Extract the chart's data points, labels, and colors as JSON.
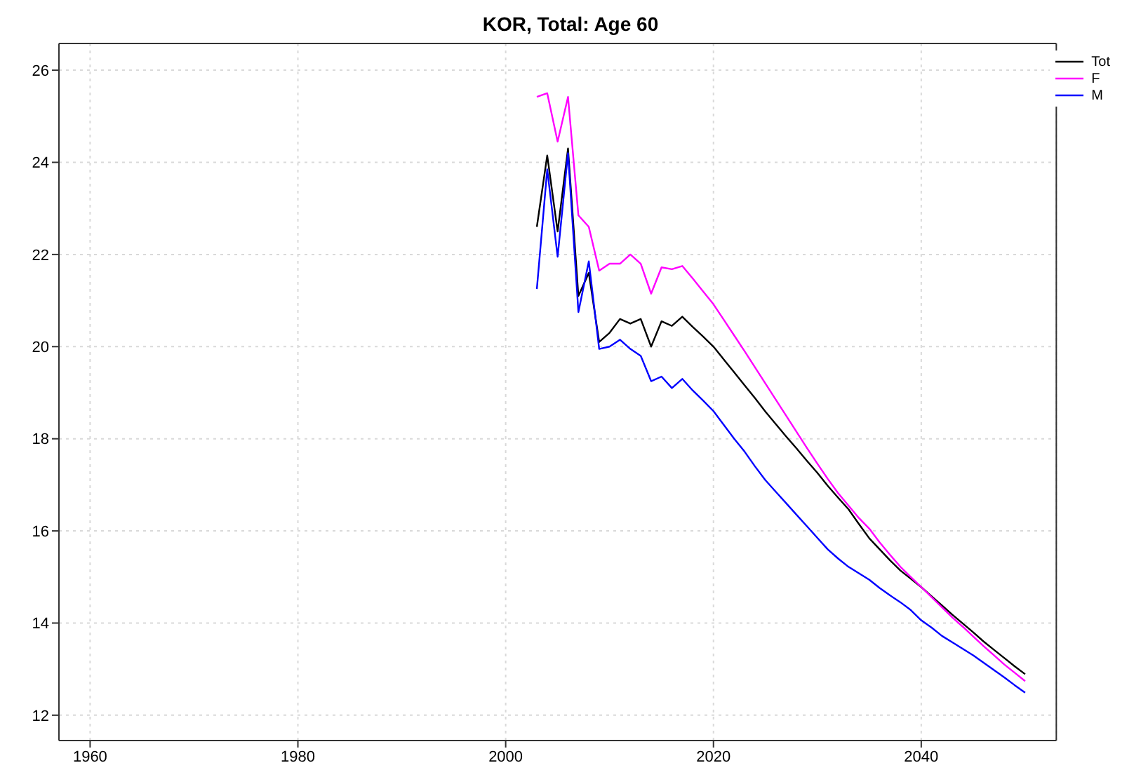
{
  "chart_data": {
    "type": "line",
    "title": "KOR, Total: Age 60",
    "x": [
      2003,
      2004,
      2005,
      2006,
      2007,
      2008,
      2009,
      2010,
      2011,
      2012,
      2013,
      2014,
      2015,
      2016,
      2017,
      2018,
      2019,
      2020,
      2021,
      2022,
      2023,
      2024,
      2025,
      2026,
      2027,
      2028,
      2029,
      2030,
      2031,
      2032,
      2033,
      2034,
      2035,
      2036,
      2037,
      2038,
      2039,
      2040,
      2041,
      2042,
      2043,
      2044,
      2045,
      2046,
      2047,
      2048,
      2049,
      2050
    ],
    "series": [
      {
        "name": "Tot",
        "color": "#000000",
        "values": [
          22.6,
          24.15,
          22.5,
          24.3,
          21.1,
          21.6,
          20.1,
          20.3,
          20.6,
          20.5,
          20.6,
          20.0,
          20.55,
          20.45,
          20.65,
          20.43,
          20.22,
          20.0,
          19.72,
          19.44,
          19.16,
          18.88,
          18.59,
          18.32,
          18.05,
          17.79,
          17.52,
          17.26,
          16.98,
          16.72,
          16.47,
          16.15,
          15.84,
          15.6,
          15.36,
          15.14,
          14.96,
          14.78,
          14.58,
          14.38,
          14.18,
          13.99,
          13.8,
          13.6,
          13.42,
          13.24,
          13.06,
          12.89
        ]
      },
      {
        "name": "F",
        "color": "#ff00ff",
        "values": [
          25.42,
          25.5,
          24.45,
          25.42,
          22.85,
          22.6,
          21.65,
          21.8,
          21.8,
          22.0,
          21.8,
          21.15,
          21.72,
          21.68,
          21.75,
          21.48,
          21.2,
          20.92,
          20.58,
          20.24,
          19.9,
          19.55,
          19.2,
          18.85,
          18.5,
          18.15,
          17.8,
          17.46,
          17.13,
          16.82,
          16.55,
          16.28,
          16.05,
          15.75,
          15.48,
          15.22,
          15.0,
          14.78,
          14.56,
          14.34,
          14.12,
          13.92,
          13.71,
          13.5,
          13.3,
          13.1,
          12.92,
          12.74
        ]
      },
      {
        "name": "M",
        "color": "#0000ff",
        "values": [
          21.25,
          23.85,
          21.95,
          24.2,
          20.75,
          21.85,
          19.95,
          20.0,
          20.15,
          19.95,
          19.8,
          19.25,
          19.35,
          19.1,
          19.3,
          19.05,
          18.83,
          18.6,
          18.3,
          18.0,
          17.72,
          17.4,
          17.1,
          16.85,
          16.6,
          16.35,
          16.1,
          15.85,
          15.6,
          15.4,
          15.22,
          15.08,
          14.94,
          14.76,
          14.6,
          14.45,
          14.28,
          14.06,
          13.9,
          13.72,
          13.58,
          13.44,
          13.3,
          13.14,
          12.98,
          12.82,
          12.65,
          12.49
        ]
      }
    ],
    "xlim": [
      1957,
      2053
    ],
    "xticks": [
      1960,
      1980,
      2000,
      2020,
      2040
    ],
    "ylim": [
      11.45,
      26.58
    ],
    "yticks": [
      12,
      14,
      16,
      18,
      20,
      22,
      24,
      26
    ],
    "grid": true,
    "legend": "top right",
    "marker": "none",
    "line_style": "solid"
  }
}
